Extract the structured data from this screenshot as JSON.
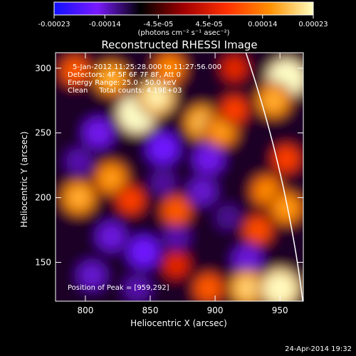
{
  "chart_data": {
    "type": "heatmap",
    "title": "Reconstructed RHESSI Image",
    "xlabel": "Heliocentric X (arcsec)",
    "ylabel": "Heliocentric Y (arcsec)",
    "xlim": [
      777,
      968
    ],
    "ylim": [
      120,
      312
    ],
    "x_ticks": [
      "800",
      "850",
      "900",
      "950"
    ],
    "y_ticks": [
      "150",
      "200",
      "250",
      "300"
    ],
    "x_tick_values": [
      800,
      850,
      900,
      950
    ],
    "y_tick_values": [
      150,
      200,
      250,
      300
    ],
    "colorbar": {
      "ticks": [
        "-0.00023",
        "-0.00014",
        "-4.5e-05",
        "4.5e-05",
        "0.00014",
        "0.00023"
      ],
      "tick_values": [
        -0.00023,
        -0.00014,
        -4.5e-05,
        4.5e-05,
        0.00014,
        0.00023
      ],
      "range": [
        -0.00023,
        0.00023
      ],
      "unit_label": "(photons cm⁻² s⁻¹ asec⁻²)",
      "colors": [
        "#1010ff",
        "#7a1aff",
        "#000000",
        "#a00000",
        "#ff3000",
        "#ff9000",
        "#ffffc0"
      ]
    },
    "annotations": [
      "5-Jan-2012 11:25:28.000 to 11:27:56.000",
      "Detectors: 4F 5F 6F 7F 8F, Att 0",
      "Energy Range: 25.0 - 50.0 keV",
      "Clean     Total counts: 4.19E+03"
    ],
    "peak_label": "Position of Peak = [959,292]",
    "peak": {
      "x": 959,
      "y": 292
    },
    "limb_color": "#ffffff",
    "bright_sources": [
      {
        "x": 840,
        "y": 265,
        "v": 0.00023
      },
      {
        "x": 855,
        "y": 278,
        "v": 0.0002
      },
      {
        "x": 820,
        "y": 292,
        "v": 0.00016
      },
      {
        "x": 792,
        "y": 298,
        "v": 0.00012
      },
      {
        "x": 865,
        "y": 300,
        "v": 0.00014
      },
      {
        "x": 890,
        "y": 258,
        "v": 0.00017
      },
      {
        "x": 905,
        "y": 252,
        "v": 0.00015
      },
      {
        "x": 915,
        "y": 268,
        "v": 0.0001
      },
      {
        "x": 915,
        "y": 300,
        "v": 8e-05
      },
      {
        "x": 820,
        "y": 215,
        "v": 0.00015
      },
      {
        "x": 795,
        "y": 200,
        "v": 0.00016
      },
      {
        "x": 835,
        "y": 198,
        "v": 0.0001
      },
      {
        "x": 870,
        "y": 190,
        "v": 0.00012
      },
      {
        "x": 940,
        "y": 205,
        "v": 0.00014
      },
      {
        "x": 955,
        "y": 192,
        "v": 0.00015
      },
      {
        "x": 933,
        "y": 175,
        "v": 0.00011
      },
      {
        "x": 955,
        "y": 292,
        "v": 0.00023
      },
      {
        "x": 945,
        "y": 275,
        "v": 0.00016
      },
      {
        "x": 925,
        "y": 130,
        "v": 0.00018
      },
      {
        "x": 950,
        "y": 130,
        "v": 0.00022
      },
      {
        "x": 895,
        "y": 130,
        "v": 0.00012
      },
      {
        "x": 870,
        "y": 148,
        "v": 8e-05
      },
      {
        "x": 955,
        "y": 230,
        "v": 0.0001
      }
    ],
    "dim_sources": [
      {
        "x": 810,
        "y": 250,
        "v": -0.00014
      },
      {
        "x": 860,
        "y": 238,
        "v": -0.00016
      },
      {
        "x": 895,
        "y": 230,
        "v": -0.00014
      },
      {
        "x": 890,
        "y": 205,
        "v": -0.00012
      },
      {
        "x": 820,
        "y": 170,
        "v": -0.00013
      },
      {
        "x": 845,
        "y": 158,
        "v": -0.00016
      },
      {
        "x": 870,
        "y": 170,
        "v": -0.0001
      },
      {
        "x": 805,
        "y": 140,
        "v": -0.00012
      },
      {
        "x": 925,
        "y": 152,
        "v": -0.00013
      },
      {
        "x": 795,
        "y": 228,
        "v": -0.0001
      },
      {
        "x": 860,
        "y": 212,
        "v": -9e-05
      },
      {
        "x": 910,
        "y": 185,
        "v": -8e-05
      },
      {
        "x": 840,
        "y": 130,
        "v": -0.0001
      }
    ]
  },
  "footer": {
    "date": "24-Apr-2014 19:32"
  }
}
